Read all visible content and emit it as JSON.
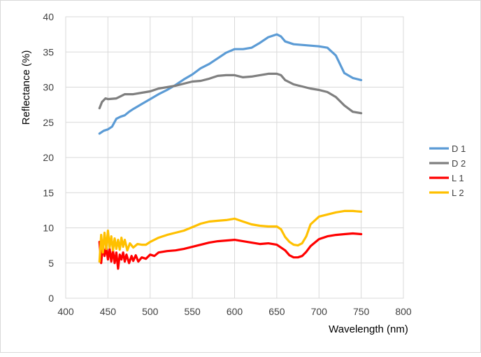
{
  "chart_data": {
    "type": "line",
    "title": "",
    "xlabel": "Wavelength (nm)",
    "ylabel": "Reflectance (%)",
    "xlim": [
      400,
      800
    ],
    "ylim": [
      0,
      40
    ],
    "xticks": [
      400,
      450,
      500,
      550,
      600,
      650,
      700,
      750,
      800
    ],
    "yticks": [
      0,
      5,
      10,
      15,
      20,
      25,
      30,
      35,
      40
    ],
    "grid": "vertical-and-horizontal",
    "legend_position": "right",
    "series": [
      {
        "name": "D 1",
        "color": "#5b9bd5",
        "x": [
          440,
          445,
          450,
          455,
          460,
          465,
          470,
          475,
          480,
          490,
          500,
          510,
          520,
          530,
          540,
          550,
          560,
          570,
          580,
          590,
          600,
          610,
          620,
          630,
          640,
          650,
          655,
          660,
          670,
          680,
          690,
          700,
          710,
          720,
          730,
          740,
          750
        ],
        "y": [
          23.4,
          23.8,
          24.0,
          24.4,
          25.5,
          25.8,
          26.0,
          26.5,
          26.9,
          27.6,
          28.3,
          29.0,
          29.6,
          30.3,
          31.1,
          31.8,
          32.7,
          33.3,
          34.1,
          34.9,
          35.4,
          35.4,
          35.6,
          36.3,
          37.1,
          37.5,
          37.2,
          36.5,
          36.1,
          36.0,
          35.9,
          35.8,
          35.6,
          34.5,
          32.0,
          31.3,
          31.0
        ]
      },
      {
        "name": "D 2",
        "color": "#7f7f7f",
        "x": [
          440,
          443,
          447,
          450,
          460,
          465,
          470,
          480,
          490,
          500,
          510,
          520,
          530,
          540,
          550,
          560,
          570,
          580,
          590,
          600,
          610,
          620,
          630,
          640,
          650,
          655,
          660,
          670,
          680,
          690,
          700,
          710,
          720,
          730,
          740,
          750
        ],
        "y": [
          27.0,
          27.9,
          28.4,
          28.3,
          28.4,
          28.7,
          29.0,
          29.0,
          29.2,
          29.4,
          29.8,
          30.0,
          30.2,
          30.5,
          30.8,
          30.9,
          31.2,
          31.6,
          31.7,
          31.7,
          31.4,
          31.5,
          31.7,
          31.9,
          31.9,
          31.7,
          31.0,
          30.4,
          30.1,
          29.8,
          29.6,
          29.3,
          28.6,
          27.4,
          26.5,
          26.3
        ]
      },
      {
        "name": "L 1",
        "color": "#ff0000",
        "x": [
          440,
          442,
          444,
          446,
          448,
          450,
          452,
          454,
          456,
          458,
          460,
          462,
          464,
          466,
          468,
          470,
          472,
          475,
          478,
          480,
          483,
          486,
          490,
          495,
          500,
          505,
          510,
          520,
          530,
          540,
          550,
          560,
          570,
          580,
          590,
          600,
          610,
          620,
          630,
          640,
          650,
          660,
          665,
          670,
          675,
          680,
          685,
          690,
          700,
          710,
          720,
          730,
          740,
          750
        ],
        "y": [
          8.0,
          5.0,
          7.6,
          6.0,
          7.2,
          5.5,
          7.0,
          5.2,
          6.8,
          5.0,
          6.5,
          4.2,
          6.2,
          5.5,
          6.5,
          5.2,
          6.2,
          5.0,
          6.0,
          5.3,
          6.1,
          5.2,
          5.8,
          5.6,
          6.2,
          6.0,
          6.5,
          6.7,
          6.8,
          7.0,
          7.3,
          7.6,
          7.9,
          8.1,
          8.2,
          8.3,
          8.1,
          7.9,
          7.7,
          7.8,
          7.6,
          6.8,
          6.1,
          5.8,
          5.8,
          6.0,
          6.6,
          7.4,
          8.4,
          8.8,
          9.0,
          9.1,
          9.2,
          9.1
        ]
      },
      {
        "name": "L 2",
        "color": "#ffc000",
        "x": [
          440,
          442,
          444,
          446,
          448,
          450,
          452,
          454,
          456,
          458,
          460,
          462,
          464,
          466,
          468,
          470,
          473,
          476,
          480,
          485,
          490,
          495,
          500,
          510,
          520,
          530,
          540,
          550,
          560,
          570,
          580,
          590,
          600,
          610,
          620,
          630,
          640,
          650,
          655,
          660,
          665,
          670,
          675,
          680,
          685,
          690,
          700,
          710,
          720,
          730,
          740,
          750
        ],
        "y": [
          5.2,
          9.0,
          6.5,
          9.3,
          7.0,
          9.6,
          7.2,
          8.8,
          6.8,
          8.5,
          7.0,
          8.3,
          6.9,
          8.6,
          7.3,
          8.3,
          6.8,
          7.8,
          7.2,
          7.7,
          7.6,
          7.6,
          8.0,
          8.6,
          9.0,
          9.3,
          9.6,
          10.1,
          10.6,
          10.9,
          11.0,
          11.1,
          11.3,
          10.9,
          10.5,
          10.3,
          10.2,
          10.2,
          9.8,
          8.7,
          8.0,
          7.6,
          7.5,
          7.8,
          8.8,
          10.5,
          11.6,
          11.9,
          12.2,
          12.4,
          12.4,
          12.3
        ]
      }
    ]
  }
}
